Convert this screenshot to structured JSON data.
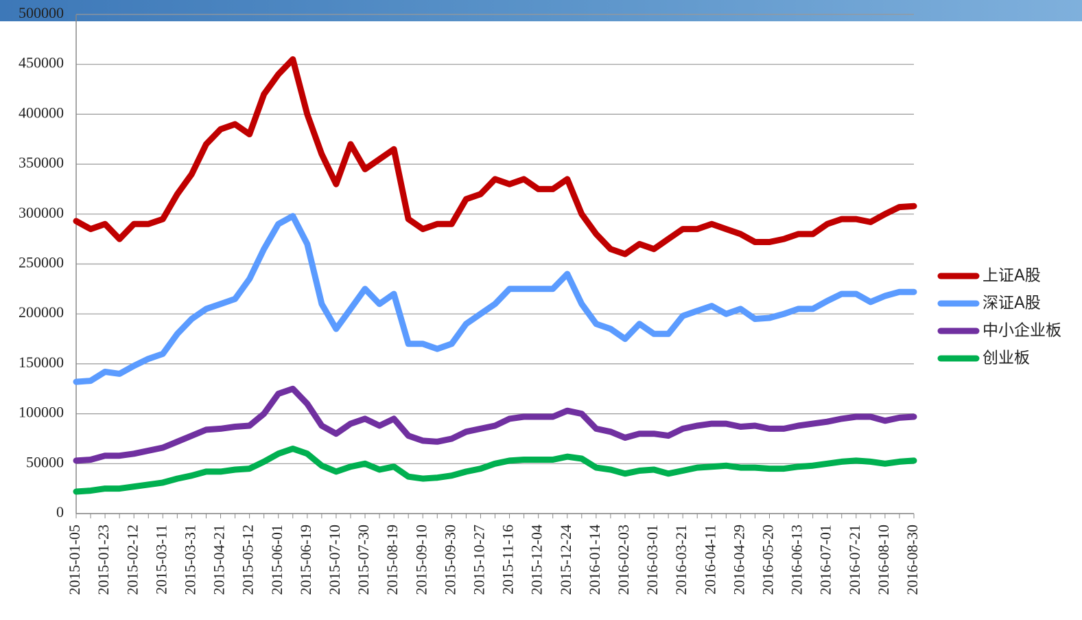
{
  "chart_data": {
    "type": "line",
    "categories": [
      "2015-01-05",
      null,
      "2015-01-23",
      null,
      "2015-02-12",
      null,
      "2015-03-11",
      null,
      "2015-03-31",
      null,
      "2015-04-21",
      null,
      "2015-05-12",
      null,
      "2015-06-01",
      null,
      "2015-06-19",
      null,
      "2015-07-10",
      null,
      "2015-07-30",
      null,
      "2015-08-19",
      null,
      "2015-09-10",
      null,
      "2015-09-30",
      null,
      "2015-10-27",
      null,
      "2015-11-16",
      null,
      "2015-12-04",
      null,
      "2015-12-24",
      null,
      "2016-01-14",
      null,
      "2016-02-03",
      null,
      "2016-03-01",
      null,
      "2016-03-21",
      null,
      "2016-04-11",
      null,
      "2016-04-29",
      null,
      "2016-05-20",
      null,
      "2016-06-13",
      null,
      "2016-07-01",
      null,
      "2016-07-21",
      null,
      "2016-08-10",
      null,
      "2016-08-30"
    ],
    "series": [
      {
        "name": "上证A股",
        "color": "#c00000",
        "values": [
          293000,
          285000,
          290000,
          275000,
          290000,
          290000,
          295000,
          320000,
          340000,
          370000,
          385000,
          390000,
          380000,
          420000,
          440000,
          455000,
          400000,
          360000,
          330000,
          370000,
          345000,
          355000,
          365000,
          295000,
          285000,
          290000,
          290000,
          315000,
          320000,
          335000,
          330000,
          335000,
          325000,
          325000,
          335000,
          300000,
          280000,
          265000,
          260000,
          270000,
          265000,
          275000,
          285000,
          285000,
          290000,
          285000,
          280000,
          272000,
          272000,
          275000,
          280000,
          280000,
          290000,
          295000,
          295000,
          292000,
          300000,
          307000,
          308000
        ]
      },
      {
        "name": "深证A股",
        "color": "#5b9bff",
        "values": [
          132000,
          133000,
          142000,
          140000,
          148000,
          155000,
          160000,
          180000,
          195000,
          205000,
          210000,
          215000,
          235000,
          265000,
          290000,
          298000,
          270000,
          210000,
          185000,
          205000,
          225000,
          210000,
          220000,
          170000,
          170000,
          165000,
          170000,
          190000,
          200000,
          210000,
          225000,
          225000,
          225000,
          225000,
          240000,
          210000,
          190000,
          185000,
          175000,
          190000,
          180000,
          180000,
          198000,
          203000,
          208000,
          200000,
          205000,
          195000,
          196000,
          200000,
          205000,
          205000,
          213000,
          220000,
          220000,
          212000,
          218000,
          222000,
          222000
        ]
      },
      {
        "name": "中小企业板",
        "color": "#7030a0",
        "values": [
          53000,
          54000,
          58000,
          58000,
          60000,
          63000,
          66000,
          72000,
          78000,
          84000,
          85000,
          87000,
          88000,
          100000,
          120000,
          125000,
          110000,
          88000,
          80000,
          90000,
          95000,
          88000,
          95000,
          78000,
          73000,
          72000,
          75000,
          82000,
          85000,
          88000,
          95000,
          97000,
          97000,
          97000,
          103000,
          100000,
          85000,
          82000,
          76000,
          80000,
          80000,
          78000,
          85000,
          88000,
          90000,
          90000,
          87000,
          88000,
          85000,
          85000,
          88000,
          90000,
          92000,
          95000,
          97000,
          97000,
          93000,
          96000,
          97000
        ]
      },
      {
        "name": "创业板",
        "color": "#00b050",
        "values": [
          22000,
          23000,
          25000,
          25000,
          27000,
          29000,
          31000,
          35000,
          38000,
          42000,
          42000,
          44000,
          45000,
          52000,
          60000,
          65000,
          60000,
          48000,
          42000,
          47000,
          50000,
          44000,
          47000,
          37000,
          35000,
          36000,
          38000,
          42000,
          45000,
          50000,
          53000,
          54000,
          54000,
          54000,
          57000,
          55000,
          46000,
          44000,
          40000,
          43000,
          44000,
          40000,
          43000,
          46000,
          47000,
          48000,
          46000,
          46000,
          45000,
          45000,
          47000,
          48000,
          50000,
          52000,
          53000,
          52000,
          50000,
          52000,
          53000
        ]
      }
    ],
    "ylim": [
      0,
      500000
    ],
    "yticks": [
      0,
      50000,
      100000,
      150000,
      200000,
      250000,
      300000,
      350000,
      400000,
      450000,
      500000
    ],
    "grid": true,
    "legend": "right"
  }
}
